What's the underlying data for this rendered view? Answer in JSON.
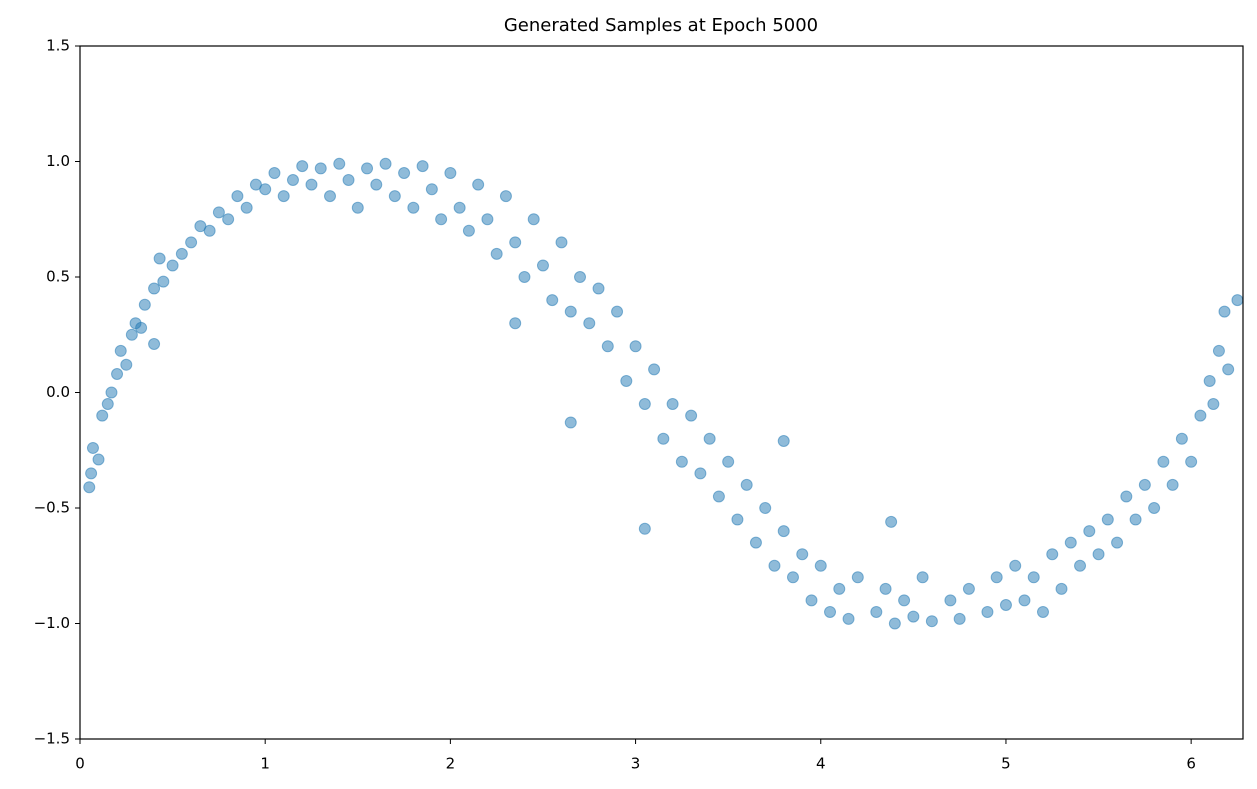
{
  "chart_data": {
    "type": "scatter",
    "title": "Generated Samples at Epoch 5000",
    "color": "#1f77b4",
    "alpha": 0.5,
    "grid": false,
    "xlim": [
      0,
      6.28
    ],
    "ylim": [
      -1.5,
      1.5
    ],
    "xticks": [
      0,
      1,
      2,
      3,
      4,
      5,
      6
    ],
    "yticks": [
      {
        "value": -1.5,
        "label": "−1.5"
      },
      {
        "value": -1.0,
        "label": "−1.0"
      },
      {
        "value": -0.5,
        "label": "−0.5"
      },
      {
        "value": 0.0,
        "label": "0.0"
      },
      {
        "value": 0.5,
        "label": "0.5"
      },
      {
        "value": 1.0,
        "label": "1.0"
      },
      1.5
    ],
    "x": [
      0.05,
      0.06,
      0.07,
      0.1,
      0.12,
      0.15,
      0.17,
      0.2,
      0.22,
      0.25,
      0.28,
      0.3,
      0.33,
      0.35,
      0.4,
      0.4,
      0.43,
      0.45,
      0.5,
      0.55,
      0.6,
      0.65,
      0.7,
      0.75,
      0.8,
      0.85,
      0.9,
      0.95,
      1.0,
      1.05,
      1.1,
      1.15,
      1.2,
      1.25,
      1.3,
      1.35,
      1.4,
      1.45,
      1.5,
      1.55,
      1.6,
      1.65,
      1.7,
      1.75,
      1.8,
      1.85,
      1.9,
      1.95,
      2.0,
      2.05,
      2.1,
      2.15,
      2.2,
      2.25,
      2.3,
      2.35,
      2.4,
      2.45,
      2.5,
      2.55,
      2.6,
      2.65,
      2.7,
      2.75,
      2.8,
      2.85,
      2.9,
      2.95,
      3.0,
      3.05,
      3.1,
      3.15,
      3.2,
      3.25,
      3.3,
      3.35,
      3.4,
      3.45,
      3.5,
      3.55,
      3.6,
      3.65,
      3.7,
      3.75,
      3.8,
      3.85,
      3.9,
      3.95,
      4.0,
      4.05,
      4.1,
      4.15,
      4.2,
      4.3,
      4.35,
      4.4,
      4.45,
      4.5,
      4.55,
      4.6,
      4.7,
      4.75,
      4.8,
      4.9,
      4.95,
      5.0,
      5.05,
      5.1,
      5.15,
      5.2,
      5.25,
      5.3,
      5.35,
      5.4,
      5.45,
      5.5,
      5.55,
      5.6,
      5.65,
      5.7,
      5.75,
      5.8,
      5.85,
      5.9,
      5.95,
      6.0,
      6.05,
      6.1,
      6.12,
      6.15,
      6.18,
      6.2,
      6.25,
      2.65,
      3.05,
      3.8,
      4.38,
      2.35
    ],
    "y": [
      -0.41,
      -0.35,
      -0.24,
      -0.29,
      -0.1,
      -0.05,
      0.0,
      0.08,
      0.18,
      0.12,
      0.25,
      0.3,
      0.28,
      0.38,
      0.45,
      0.21,
      0.58,
      0.48,
      0.55,
      0.6,
      0.65,
      0.72,
      0.7,
      0.78,
      0.75,
      0.85,
      0.8,
      0.9,
      0.88,
      0.95,
      0.85,
      0.92,
      0.98,
      0.9,
      0.97,
      0.85,
      0.99,
      0.92,
      0.8,
      0.97,
      0.9,
      0.99,
      0.85,
      0.95,
      0.8,
      0.98,
      0.88,
      0.75,
      0.95,
      0.8,
      0.7,
      0.9,
      0.75,
      0.6,
      0.85,
      0.65,
      0.5,
      0.75,
      0.55,
      0.4,
      0.65,
      0.35,
      0.5,
      0.3,
      0.45,
      0.2,
      0.35,
      0.05,
      0.2,
      -0.05,
      0.1,
      -0.2,
      -0.05,
      -0.3,
      -0.1,
      -0.35,
      -0.2,
      -0.45,
      -0.3,
      -0.55,
      -0.4,
      -0.65,
      -0.5,
      -0.75,
      -0.6,
      -0.8,
      -0.7,
      -0.9,
      -0.75,
      -0.95,
      -0.85,
      -0.98,
      -0.8,
      -0.95,
      -0.85,
      -1.0,
      -0.9,
      -0.97,
      -0.8,
      -0.99,
      -0.9,
      -0.98,
      -0.85,
      -0.95,
      -0.8,
      -0.92,
      -0.75,
      -0.9,
      -0.8,
      -0.95,
      -0.7,
      -0.85,
      -0.65,
      -0.75,
      -0.6,
      -0.7,
      -0.55,
      -0.65,
      -0.45,
      -0.55,
      -0.4,
      -0.5,
      -0.3,
      -0.4,
      -0.2,
      -0.3,
      -0.1,
      0.05,
      -0.05,
      0.18,
      0.35,
      0.1,
      0.4,
      -0.13,
      -0.59,
      -0.21,
      -0.56,
      0.3
    ]
  }
}
